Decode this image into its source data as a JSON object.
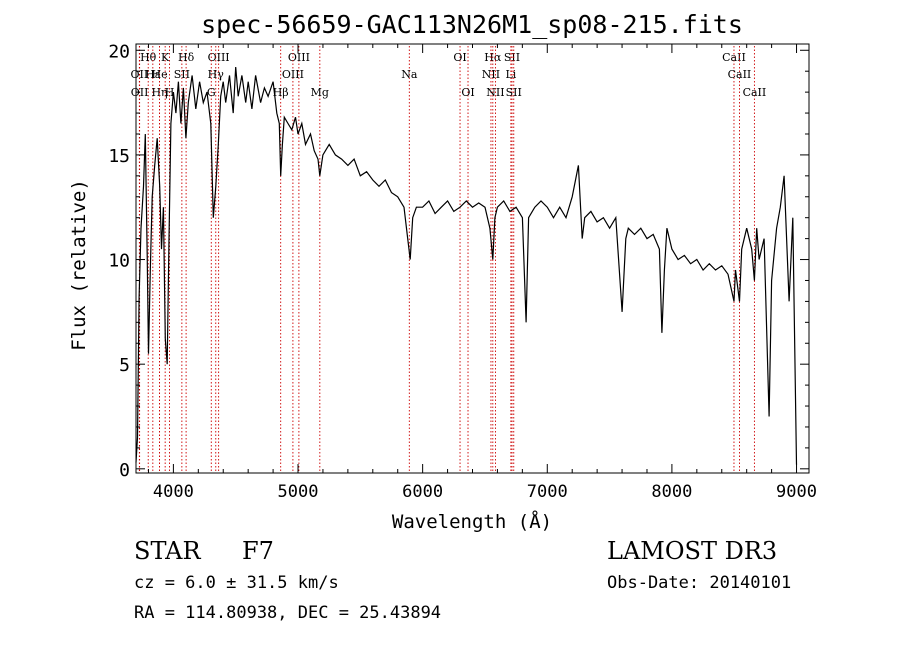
{
  "chart_data": {
    "type": "line",
    "title": "spec-56659-GAC113N26M1_sp08-215.fits",
    "xlabel": "Wavelength (Å)",
    "ylabel": "Flux (relative)",
    "xlim": [
      3700,
      9100
    ],
    "ylim": [
      -0.2,
      20.3
    ],
    "xticks": [
      4000,
      5000,
      6000,
      7000,
      8000,
      9000
    ],
    "yticks": [
      0,
      5,
      10,
      15,
      20
    ],
    "grid": false,
    "series": [
      {
        "points": [
          [
            3700,
            0.3
          ],
          [
            3712,
            1.5
          ],
          [
            3725,
            8.2
          ],
          [
            3740,
            11.5
          ],
          [
            3760,
            13.5
          ],
          [
            3775,
            16.0
          ],
          [
            3790,
            10.2
          ],
          [
            3800,
            5.5
          ],
          [
            3815,
            9.5
          ],
          [
            3830,
            13.0
          ],
          [
            3850,
            14.5
          ],
          [
            3870,
            15.8
          ],
          [
            3890,
            13.5
          ],
          [
            3905,
            10.5
          ],
          [
            3920,
            12.5
          ],
          [
            3935,
            6.2
          ],
          [
            3950,
            5.0
          ],
          [
            3965,
            11.0
          ],
          [
            3980,
            16.5
          ],
          [
            4000,
            18.0
          ],
          [
            4020,
            17.0
          ],
          [
            4040,
            18.5
          ],
          [
            4060,
            16.5
          ],
          [
            4080,
            18.2
          ],
          [
            4100,
            15.8
          ],
          [
            4120,
            17.5
          ],
          [
            4150,
            18.8
          ],
          [
            4180,
            17.2
          ],
          [
            4210,
            18.5
          ],
          [
            4240,
            17.5
          ],
          [
            4270,
            18.0
          ],
          [
            4300,
            16.5
          ],
          [
            4320,
            12.0
          ],
          [
            4340,
            13.5
          ],
          [
            4360,
            15.5
          ],
          [
            4380,
            17.8
          ],
          [
            4400,
            18.5
          ],
          [
            4420,
            17.5
          ],
          [
            4450,
            18.8
          ],
          [
            4480,
            17.0
          ],
          [
            4500,
            19.2
          ],
          [
            4520,
            17.8
          ],
          [
            4550,
            18.8
          ],
          [
            4580,
            17.5
          ],
          [
            4600,
            18.5
          ],
          [
            4630,
            17.2
          ],
          [
            4660,
            18.8
          ],
          [
            4700,
            17.5
          ],
          [
            4730,
            18.2
          ],
          [
            4760,
            17.8
          ],
          [
            4800,
            18.5
          ],
          [
            4830,
            17.0
          ],
          [
            4850,
            16.5
          ],
          [
            4861,
            14.0
          ],
          [
            4875,
            15.5
          ],
          [
            4890,
            16.8
          ],
          [
            4920,
            16.5
          ],
          [
            4950,
            16.2
          ],
          [
            4980,
            16.8
          ],
          [
            5000,
            16.0
          ],
          [
            5030,
            16.5
          ],
          [
            5060,
            15.5
          ],
          [
            5100,
            16.0
          ],
          [
            5130,
            15.2
          ],
          [
            5160,
            14.8
          ],
          [
            5175,
            14.0
          ],
          [
            5200,
            15.0
          ],
          [
            5250,
            15.5
          ],
          [
            5300,
            15.0
          ],
          [
            5350,
            14.8
          ],
          [
            5400,
            14.5
          ],
          [
            5450,
            14.8
          ],
          [
            5500,
            14.0
          ],
          [
            5550,
            14.2
          ],
          [
            5600,
            13.8
          ],
          [
            5650,
            13.5
          ],
          [
            5700,
            13.8
          ],
          [
            5750,
            13.2
          ],
          [
            5800,
            13.0
          ],
          [
            5850,
            12.5
          ],
          [
            5880,
            11.0
          ],
          [
            5900,
            10.0
          ],
          [
            5920,
            12.0
          ],
          [
            5950,
            12.5
          ],
          [
            6000,
            12.5
          ],
          [
            6050,
            12.8
          ],
          [
            6100,
            12.2
          ],
          [
            6150,
            12.5
          ],
          [
            6200,
            12.8
          ],
          [
            6250,
            12.3
          ],
          [
            6300,
            12.5
          ],
          [
            6350,
            12.8
          ],
          [
            6400,
            12.5
          ],
          [
            6450,
            12.7
          ],
          [
            6500,
            12.5
          ],
          [
            6540,
            11.5
          ],
          [
            6563,
            10.0
          ],
          [
            6580,
            12.0
          ],
          [
            6600,
            12.5
          ],
          [
            6650,
            12.8
          ],
          [
            6700,
            12.3
          ],
          [
            6750,
            12.5
          ],
          [
            6800,
            12.0
          ],
          [
            6830,
            7.0
          ],
          [
            6850,
            12.0
          ],
          [
            6900,
            12.5
          ],
          [
            6950,
            12.8
          ],
          [
            7000,
            12.5
          ],
          [
            7050,
            12.0
          ],
          [
            7100,
            12.5
          ],
          [
            7150,
            12.0
          ],
          [
            7200,
            13.0
          ],
          [
            7250,
            14.5
          ],
          [
            7280,
            11.0
          ],
          [
            7300,
            12.0
          ],
          [
            7350,
            12.3
          ],
          [
            7400,
            11.8
          ],
          [
            7450,
            12.0
          ],
          [
            7500,
            11.5
          ],
          [
            7550,
            12.0
          ],
          [
            7600,
            7.5
          ],
          [
            7630,
            11.0
          ],
          [
            7650,
            11.5
          ],
          [
            7700,
            11.2
          ],
          [
            7750,
            11.5
          ],
          [
            7800,
            11.0
          ],
          [
            7850,
            11.2
          ],
          [
            7900,
            10.5
          ],
          [
            7920,
            6.5
          ],
          [
            7940,
            9.5
          ],
          [
            7960,
            11.5
          ],
          [
            8000,
            10.5
          ],
          [
            8050,
            10.0
          ],
          [
            8100,
            10.2
          ],
          [
            8150,
            9.8
          ],
          [
            8200,
            10.0
          ],
          [
            8250,
            9.5
          ],
          [
            8300,
            9.8
          ],
          [
            8350,
            9.5
          ],
          [
            8400,
            9.7
          ],
          [
            8450,
            9.3
          ],
          [
            8498,
            8.0
          ],
          [
            8510,
            9.5
          ],
          [
            8542,
            8.0
          ],
          [
            8560,
            10.5
          ],
          [
            8600,
            11.5
          ],
          [
            8640,
            10.5
          ],
          [
            8662,
            9.0
          ],
          [
            8680,
            11.5
          ],
          [
            8700,
            10.0
          ],
          [
            8740,
            11.0
          ],
          [
            8780,
            2.5
          ],
          [
            8800,
            9.0
          ],
          [
            8840,
            11.5
          ],
          [
            8870,
            12.5
          ],
          [
            8900,
            14.0
          ],
          [
            8940,
            8.0
          ],
          [
            8970,
            12.0
          ],
          [
            9000,
            0.2
          ]
        ]
      }
    ],
    "line_markers": [
      {
        "label": "Hθ",
        "x": 3798,
        "row": 0
      },
      {
        "label": "OII",
        "x": 3727,
        "row": 1
      },
      {
        "label": "OII",
        "x": 3729,
        "row": 2
      },
      {
        "label": "Hε",
        "x": 3835,
        "row": 1
      },
      {
        "label": "Hη",
        "x": 3889,
        "row": 2
      },
      {
        "label": "K",
        "x": 3934,
        "row": 0
      },
      {
        "label": "H",
        "x": 3969,
        "row": 2
      },
      {
        "label": "He",
        "x": 3889,
        "row": 1
      },
      {
        "label": "SII",
        "x": 4068,
        "row": 1
      },
      {
        "label": "Hδ",
        "x": 4102,
        "row": 0
      },
      {
        "label": "OIII",
        "x": 4363,
        "row": 0
      },
      {
        "label": "Hγ",
        "x": 4340,
        "row": 1
      },
      {
        "label": "G",
        "x": 4304,
        "row": 2
      },
      {
        "label": "Hβ",
        "x": 4861,
        "row": 2
      },
      {
        "label": "OIII",
        "x": 5007,
        "row": 0
      },
      {
        "label": "OIII",
        "x": 4959,
        "row": 1
      },
      {
        "label": "Mg",
        "x": 5175,
        "row": 2
      },
      {
        "label": "Na",
        "x": 5893,
        "row": 1
      },
      {
        "label": "OI",
        "x": 6300,
        "row": 0
      },
      {
        "label": "OI",
        "x": 6364,
        "row": 2
      },
      {
        "label": "Hα",
        "x": 6563,
        "row": 0
      },
      {
        "label": "NII",
        "x": 6548,
        "row": 1
      },
      {
        "label": "NII",
        "x": 6584,
        "row": 2
      },
      {
        "label": "SII",
        "x": 6717,
        "row": 0
      },
      {
        "label": "Li",
        "x": 6708,
        "row": 1
      },
      {
        "label": "SII",
        "x": 6731,
        "row": 2
      },
      {
        "label": "CaII",
        "x": 8498,
        "row": 0
      },
      {
        "label": "CaII",
        "x": 8542,
        "row": 1
      },
      {
        "label": "CaII",
        "x": 8662,
        "row": 2
      }
    ]
  },
  "info": {
    "object_class": "STAR",
    "subclass": "F7",
    "survey": "LAMOST DR3",
    "cz": "cz = 6.0 ± 31.5 km/s",
    "obs_date": "Obs-Date: 20140101",
    "coords": "RA = 114.80938, DEC =  25.43894"
  },
  "colors": {
    "axis": "#000000",
    "spectrum": "#000000",
    "markers": "#cc0000"
  }
}
